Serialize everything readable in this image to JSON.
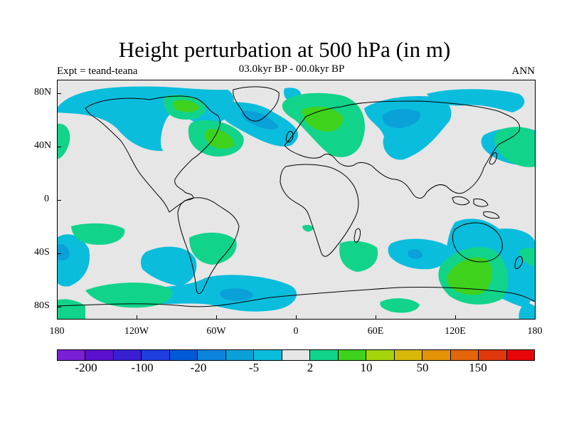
{
  "title": "Height perturbation at 500 hPa (in m)",
  "experiment_label": "Expt = teand-teana",
  "period_label": "03.0kyr BP - 00.0kyr BP",
  "season_label": "ANN",
  "map": {
    "projection": "cylindrical-equidistant",
    "lon_range": [
      -180,
      180
    ],
    "lat_range": [
      -90,
      90
    ],
    "background_color": "#e6e6e6",
    "y_ticks": [
      "80N",
      "40N",
      "0",
      "40S",
      "80S"
    ],
    "x_ticks": [
      "180",
      "120W",
      "60W",
      "0",
      "60E",
      "120E",
      "180"
    ]
  },
  "colorbar": {
    "colors": [
      "#7b1fd6",
      "#5a10cc",
      "#3a1fd2",
      "#1e3ee0",
      "#005ad8",
      "#0b84dc",
      "#0aa0d8",
      "#0bbddc",
      "#e6e6e6",
      "#12d38a",
      "#3fd21c",
      "#a4d40a",
      "#d8b806",
      "#e49206",
      "#e2660a",
      "#e2380d",
      "#e6060a"
    ],
    "labels": [
      "-200",
      "-100",
      "-20",
      "-5",
      "2",
      "10",
      "50",
      "150"
    ]
  },
  "contour_colors": {
    "neg_light": "#0bbddc",
    "neg_mid": "#0aa0d8",
    "pos_light": "#12d38a",
    "pos_mid": "#3fd21c"
  }
}
